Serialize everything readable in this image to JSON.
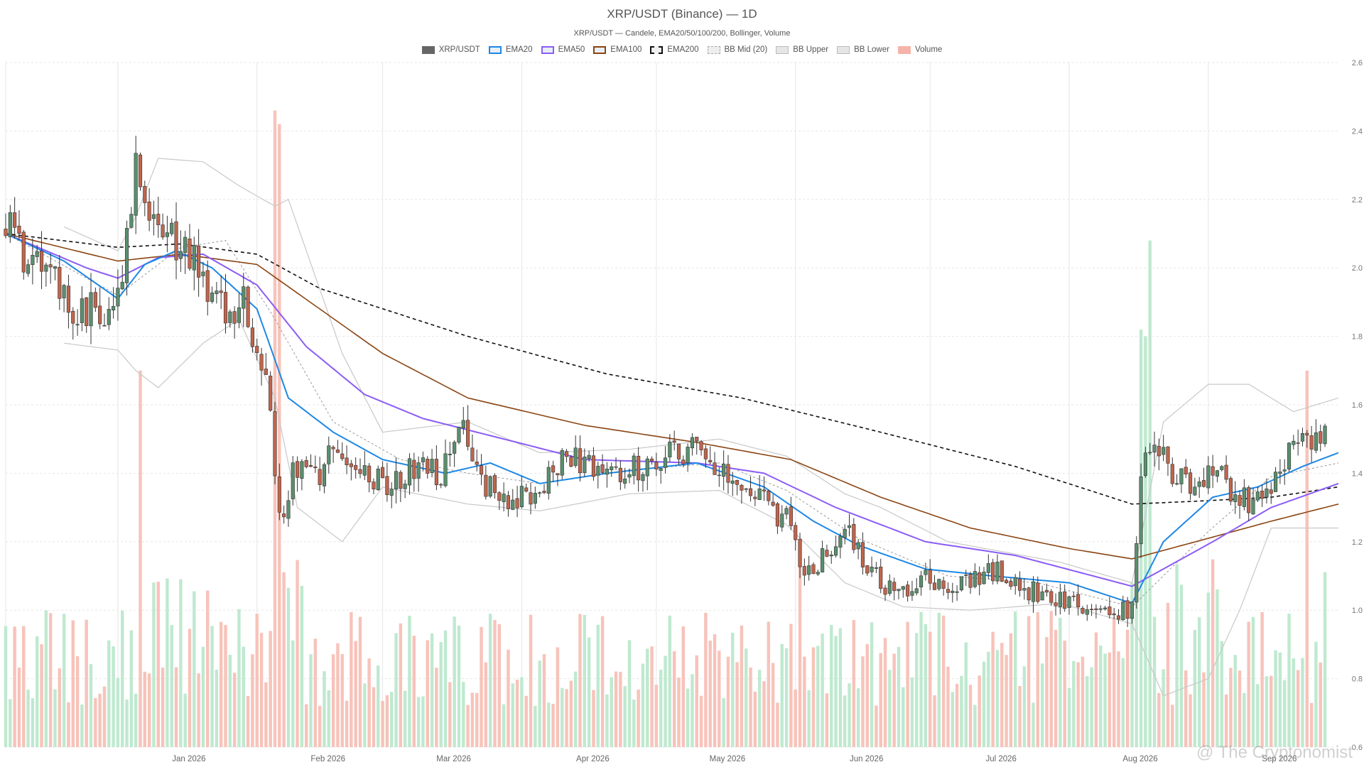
{
  "title": "XRP/USDT (Binance) — 1D",
  "subtitle": "XRP/USDT — Candele, EMA20/50/100/200, Bollinger, Volume",
  "watermark": "@ The Cryptonomist",
  "legend": [
    {
      "label": "XRP/USDT",
      "color": "#666666",
      "style": "solid-fill"
    },
    {
      "label": "EMA20",
      "color": "#1e88e5",
      "style": "line"
    },
    {
      "label": "EMA50",
      "color": "#8b5cf6",
      "style": "line"
    },
    {
      "label": "EMA100",
      "color": "#8b4513",
      "style": "line"
    },
    {
      "label": "EMA200",
      "color": "#111111",
      "style": "dashed"
    },
    {
      "label": "BB Mid (20)",
      "color": "#aaaaaa",
      "style": "dashed-light"
    },
    {
      "label": "BB Upper",
      "color": "#bbbbbb",
      "style": "light"
    },
    {
      "label": "BB Lower",
      "color": "#bbbbbb",
      "style": "light"
    },
    {
      "label": "Volume",
      "color": "#f4b4aa",
      "style": "volume"
    }
  ],
  "chart_data": {
    "type": "candlestick",
    "x_start": "2025-12-07",
    "x_end": "2026-09-30",
    "x_tick_labels": [
      "Jan 2026",
      "Feb 2026",
      "Mar 2026",
      "Apr 2026",
      "May 2026",
      "Jun 2026",
      "Jul 2026",
      "Aug 2026",
      "Sep 2026"
    ],
    "ylim": [
      0.6,
      2.6
    ],
    "y_ticks": [
      "0.6",
      "0.8",
      "1.0",
      "1.2",
      "1.4",
      "1.6",
      "1.8",
      "2.0",
      "2.2",
      "2.4",
      "2.6"
    ],
    "y_axis_side": "right",
    "grid": true,
    "colors": {
      "up": "#5a8f6e",
      "down": "#c0654d",
      "vol_up": "#bfe9d0",
      "vol_down": "#f7c3ba",
      "ema20": "#1e88e5",
      "ema50": "#8b5cf6",
      "ema100": "#8b4513",
      "ema200": "#111111",
      "bb": "#c8c8c8",
      "bb_mid": "#999999"
    },
    "close_anchors": [
      [
        "2025-12-07",
        2.13
      ],
      [
        "2025-12-10",
        2.04
      ],
      [
        "2025-12-14",
        2.07
      ],
      [
        "2025-12-18",
        1.96
      ],
      [
        "2025-12-22",
        1.88
      ],
      [
        "2025-12-26",
        1.89
      ],
      [
        "2025-12-30",
        1.86
      ],
      [
        "2026-01-02",
        1.98
      ],
      [
        "2026-01-05",
        2.33
      ],
      [
        "2026-01-08",
        2.15
      ],
      [
        "2026-01-12",
        2.08
      ],
      [
        "2026-01-16",
        2.09
      ],
      [
        "2026-01-20",
        1.96
      ],
      [
        "2026-01-25",
        1.86
      ],
      [
        "2026-01-29",
        1.9
      ],
      [
        "2026-02-01",
        1.75
      ],
      [
        "2026-02-04",
        1.6
      ],
      [
        "2026-02-06",
        1.25
      ],
      [
        "2026-02-09",
        1.4
      ],
      [
        "2026-02-15",
        1.4
      ],
      [
        "2026-02-18",
        1.5
      ],
      [
        "2026-02-24",
        1.39
      ],
      [
        "2026-03-02",
        1.37
      ],
      [
        "2026-03-08",
        1.42
      ],
      [
        "2026-03-14",
        1.39
      ],
      [
        "2026-03-19",
        1.52
      ],
      [
        "2026-03-24",
        1.36
      ],
      [
        "2026-03-30",
        1.33
      ],
      [
        "2026-04-05",
        1.35
      ],
      [
        "2026-04-10",
        1.45
      ],
      [
        "2026-04-16",
        1.42
      ],
      [
        "2026-04-22",
        1.4
      ],
      [
        "2026-04-28",
        1.42
      ],
      [
        "2026-05-04",
        1.45
      ],
      [
        "2026-05-09",
        1.48
      ],
      [
        "2026-05-14",
        1.4
      ],
      [
        "2026-05-20",
        1.36
      ],
      [
        "2026-05-26",
        1.3
      ],
      [
        "2026-05-31",
        1.25
      ],
      [
        "2026-06-03",
        1.11
      ],
      [
        "2026-06-08",
        1.16
      ],
      [
        "2026-06-13",
        1.22
      ],
      [
        "2026-06-18",
        1.12
      ],
      [
        "2026-06-23",
        1.04
      ],
      [
        "2026-06-29",
        1.09
      ],
      [
        "2026-07-04",
        1.08
      ],
      [
        "2026-07-10",
        1.09
      ],
      [
        "2026-07-16",
        1.11
      ],
      [
        "2026-07-22",
        1.06
      ],
      [
        "2026-07-28",
        1.04
      ],
      [
        "2026-08-03",
        1.02
      ],
      [
        "2026-08-10",
        1.0
      ],
      [
        "2026-08-15",
        1.0
      ],
      [
        "2026-08-17",
        1.42
      ],
      [
        "2026-08-21",
        1.46
      ],
      [
        "2026-08-27",
        1.36
      ],
      [
        "2026-09-02",
        1.42
      ],
      [
        "2026-09-07",
        1.34
      ],
      [
        "2026-09-11",
        1.3
      ],
      [
        "2026-09-16",
        1.4
      ],
      [
        "2026-09-21",
        1.52
      ],
      [
        "2026-09-26",
        1.5
      ]
    ],
    "ema20": [
      [
        "2025-12-07",
        2.1
      ],
      [
        "2025-12-20",
        2.02
      ],
      [
        "2026-01-01",
        1.91
      ],
      [
        "2026-01-07",
        2.01
      ],
      [
        "2026-01-14",
        2.05
      ],
      [
        "2026-01-22",
        2.0
      ],
      [
        "2026-02-01",
        1.88
      ],
      [
        "2026-02-08",
        1.62
      ],
      [
        "2026-02-18",
        1.52
      ],
      [
        "2026-03-01",
        1.44
      ],
      [
        "2026-03-15",
        1.4
      ],
      [
        "2026-03-25",
        1.43
      ],
      [
        "2026-04-05",
        1.37
      ],
      [
        "2026-04-20",
        1.4
      ],
      [
        "2026-05-10",
        1.43
      ],
      [
        "2026-05-25",
        1.36
      ],
      [
        "2026-06-05",
        1.26
      ],
      [
        "2026-06-15",
        1.19
      ],
      [
        "2026-06-30",
        1.12
      ],
      [
        "2026-07-15",
        1.1
      ],
      [
        "2026-08-01",
        1.08
      ],
      [
        "2026-08-15",
        1.02
      ],
      [
        "2026-08-22",
        1.2
      ],
      [
        "2026-09-02",
        1.33
      ],
      [
        "2026-09-12",
        1.36
      ],
      [
        "2026-09-22",
        1.42
      ],
      [
        "2026-09-30",
        1.46
      ]
    ],
    "ema50": [
      [
        "2025-12-07",
        2.1
      ],
      [
        "2025-12-25",
        2.0
      ],
      [
        "2026-01-01",
        1.97
      ],
      [
        "2026-01-10",
        2.03
      ],
      [
        "2026-01-20",
        2.04
      ],
      [
        "2026-02-01",
        1.95
      ],
      [
        "2026-02-12",
        1.77
      ],
      [
        "2026-02-25",
        1.63
      ],
      [
        "2026-03-10",
        1.56
      ],
      [
        "2026-03-25",
        1.51
      ],
      [
        "2026-04-15",
        1.44
      ],
      [
        "2026-05-10",
        1.43
      ],
      [
        "2026-05-25",
        1.4
      ],
      [
        "2026-06-10",
        1.3
      ],
      [
        "2026-06-30",
        1.2
      ],
      [
        "2026-07-20",
        1.16
      ],
      [
        "2026-08-15",
        1.07
      ],
      [
        "2026-09-02",
        1.2
      ],
      [
        "2026-09-15",
        1.3
      ],
      [
        "2026-09-30",
        1.37
      ]
    ],
    "ema100": [
      [
        "2025-12-07",
        2.1
      ],
      [
        "2026-01-01",
        2.02
      ],
      [
        "2026-01-15",
        2.04
      ],
      [
        "2026-02-01",
        2.01
      ],
      [
        "2026-02-15",
        1.88
      ],
      [
        "2026-03-01",
        1.75
      ],
      [
        "2026-03-20",
        1.62
      ],
      [
        "2026-04-15",
        1.54
      ],
      [
        "2026-05-10",
        1.49
      ],
      [
        "2026-05-31",
        1.44
      ],
      [
        "2026-06-20",
        1.33
      ],
      [
        "2026-07-10",
        1.24
      ],
      [
        "2026-08-01",
        1.18
      ],
      [
        "2026-08-15",
        1.15
      ],
      [
        "2026-09-01",
        1.21
      ],
      [
        "2026-09-15",
        1.26
      ],
      [
        "2026-09-30",
        1.31
      ]
    ],
    "ema200": [
      [
        "2025-12-07",
        2.1
      ],
      [
        "2026-01-01",
        2.06
      ],
      [
        "2026-01-15",
        2.07
      ],
      [
        "2026-02-01",
        2.04
      ],
      [
        "2026-02-15",
        1.94
      ],
      [
        "2026-03-20",
        1.8
      ],
      [
        "2026-04-20",
        1.69
      ],
      [
        "2026-05-20",
        1.62
      ],
      [
        "2026-06-20",
        1.52
      ],
      [
        "2026-07-20",
        1.42
      ],
      [
        "2026-08-15",
        1.31
      ],
      [
        "2026-09-01",
        1.32
      ],
      [
        "2026-09-15",
        1.33
      ],
      [
        "2026-09-30",
        1.36
      ]
    ],
    "bb_mid": [
      [
        "2025-12-07",
        2.1
      ],
      [
        "2026-01-01",
        1.92
      ],
      [
        "2026-01-15",
        2.06
      ],
      [
        "2026-01-25",
        2.08
      ],
      [
        "2026-02-05",
        1.85
      ],
      [
        "2026-02-18",
        1.55
      ],
      [
        "2026-03-05",
        1.44
      ],
      [
        "2026-03-20",
        1.4
      ],
      [
        "2026-04-05",
        1.37
      ],
      [
        "2026-04-25",
        1.41
      ],
      [
        "2026-05-15",
        1.43
      ],
      [
        "2026-05-30",
        1.35
      ],
      [
        "2026-06-15",
        1.21
      ],
      [
        "2026-07-05",
        1.1
      ],
      [
        "2026-07-25",
        1.08
      ],
      [
        "2026-08-15",
        1.01
      ],
      [
        "2026-09-01",
        1.23
      ],
      [
        "2026-09-15",
        1.39
      ],
      [
        "2026-09-30",
        1.43
      ]
    ],
    "bb_upper": [
      [
        "2025-12-20",
        2.12
      ],
      [
        "2026-01-01",
        2.05
      ],
      [
        "2026-01-05",
        2.15
      ],
      [
        "2026-01-10",
        2.32
      ],
      [
        "2026-01-20",
        2.31
      ],
      [
        "2026-01-28",
        2.24
      ],
      [
        "2026-02-05",
        2.18
      ],
      [
        "2026-02-08",
        2.2
      ],
      [
        "2026-02-20",
        1.75
      ],
      [
        "2026-03-01",
        1.52
      ],
      [
        "2026-03-20",
        1.55
      ],
      [
        "2026-04-05",
        1.46
      ],
      [
        "2026-04-25",
        1.47
      ],
      [
        "2026-05-15",
        1.5
      ],
      [
        "2026-05-30",
        1.45
      ],
      [
        "2026-06-12",
        1.34
      ],
      [
        "2026-06-20",
        1.3
      ],
      [
        "2026-07-05",
        1.2
      ],
      [
        "2026-07-30",
        1.14
      ],
      [
        "2026-08-15",
        1.08
      ],
      [
        "2026-08-22",
        1.55
      ],
      [
        "2026-09-01",
        1.66
      ],
      [
        "2026-09-10",
        1.66
      ],
      [
        "2026-09-20",
        1.58
      ],
      [
        "2026-09-30",
        1.62
      ]
    ],
    "bb_lower": [
      [
        "2025-12-20",
        1.78
      ],
      [
        "2026-01-01",
        1.76
      ],
      [
        "2026-01-05",
        1.7
      ],
      [
        "2026-01-10",
        1.65
      ],
      [
        "2026-01-20",
        1.78
      ],
      [
        "2026-01-28",
        1.85
      ],
      [
        "2026-02-05",
        1.62
      ],
      [
        "2026-02-10",
        1.3
      ],
      [
        "2026-02-20",
        1.2
      ],
      [
        "2026-03-01",
        1.36
      ],
      [
        "2026-03-20",
        1.31
      ],
      [
        "2026-04-05",
        1.29
      ],
      [
        "2026-04-25",
        1.34
      ],
      [
        "2026-05-15",
        1.35
      ],
      [
        "2026-05-30",
        1.25
      ],
      [
        "2026-06-12",
        1.08
      ],
      [
        "2026-06-25",
        1.01
      ],
      [
        "2026-07-10",
        1.0
      ],
      [
        "2026-07-30",
        1.02
      ],
      [
        "2026-08-15",
        0.96
      ],
      [
        "2026-08-22",
        0.75
      ],
      [
        "2026-09-01",
        0.8
      ],
      [
        "2026-09-08",
        1.0
      ],
      [
        "2026-09-15",
        1.24
      ],
      [
        "2026-09-30",
        1.24
      ]
    ],
    "volume_peaks": [
      [
        "2026-01-06",
        0.55
      ],
      [
        "2026-02-05",
        0.93
      ],
      [
        "2026-02-06",
        0.91
      ],
      [
        "2026-08-17",
        0.61
      ],
      [
        "2026-08-18",
        0.6
      ],
      [
        "2026-08-19",
        0.74
      ],
      [
        "2026-06-02",
        0.3
      ],
      [
        "2026-09-23",
        0.55
      ]
    ]
  }
}
